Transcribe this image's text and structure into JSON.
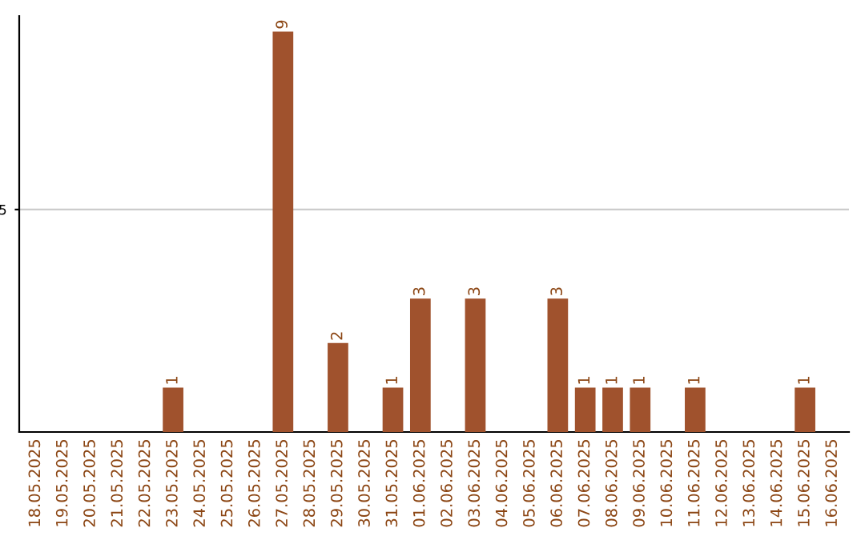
{
  "chart_data": {
    "type": "bar",
    "categories": [
      "18.05.2025",
      "19.05.2025",
      "20.05.2025",
      "21.05.2025",
      "22.05.2025",
      "23.05.2025",
      "24.05.2025",
      "25.05.2025",
      "26.05.2025",
      "27.05.2025",
      "28.05.2025",
      "29.05.2025",
      "30.05.2025",
      "31.05.2025",
      "01.06.2025",
      "02.06.2025",
      "03.06.2025",
      "04.06.2025",
      "05.06.2025",
      "06.06.2025",
      "07.06.2025",
      "08.06.2025",
      "09.06.2025",
      "10.06.2025",
      "11.06.2025",
      "12.06.2025",
      "13.06.2025",
      "14.06.2025",
      "15.06.2025",
      "16.06.2025"
    ],
    "values": [
      0,
      0,
      0,
      0,
      0,
      1,
      0,
      0,
      0,
      9,
      0,
      2,
      0,
      1,
      3,
      0,
      3,
      0,
      0,
      3,
      1,
      1,
      1,
      0,
      1,
      0,
      0,
      0,
      1,
      0
    ],
    "color": "#a0522d",
    "ylim": [
      0,
      9.35
    ],
    "yticks": [
      5
    ],
    "grid": "y",
    "value_labels": [
      null,
      null,
      null,
      null,
      null,
      "1",
      null,
      null,
      null,
      "9",
      null,
      "2",
      null,
      "1",
      "3",
      null,
      "3",
      null,
      null,
      "3",
      "1",
      "1",
      "1",
      null,
      "1",
      null,
      null,
      null,
      "1",
      null
    ]
  }
}
